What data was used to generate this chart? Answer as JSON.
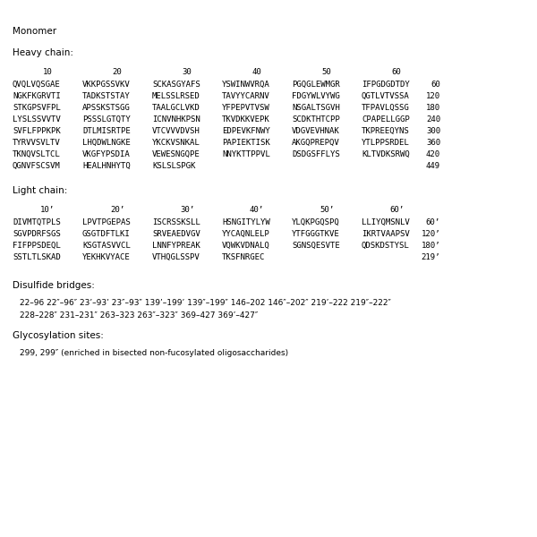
{
  "title": "Monomer",
  "heavy_chain_label": "Heavy chain:",
  "heavy_chain_rows": [
    [
      "QVQLVQSGAE",
      "VKKPGSSVKV",
      "SCKASGYAFS",
      "YSWINWVRQA",
      "PGQGLEWMGR",
      "IFPGDGDTDY",
      "60"
    ],
    [
      "NGKFKGRVTI",
      "TADKSTSTAY",
      "MELSSLRSED",
      "TAVYYCARNV",
      "FDGYWLVYWG",
      "QGTLVTVSSA",
      "120"
    ],
    [
      "STKGPSVFPL",
      "APSSKSTSGG",
      "TAALGCLVKD",
      "YFPEPVTVSW",
      "NSGALTSGVH",
      "TFPAVLQSSG",
      "180"
    ],
    [
      "LYSLSSVVTV",
      "PSSSLGTQTY",
      "ICNVNHKPSN",
      "TKVDKKVEPK",
      "SCDKTHTCPP",
      "CPAPELLGGP",
      "240"
    ],
    [
      "SVFLFPPKPK",
      "DTLMISRTPE",
      "VTCVVVDVSH",
      "EDPEVKFNWY",
      "VDGVEVHNAK",
      "TKPREEQYNS",
      "300"
    ],
    [
      "TYRVVSVLTV",
      "LHQDWLNGKE",
      "YKCKVSNKAL",
      "PAPIEKTISK",
      "AKGQPREPQV",
      "YTLPPSRDEL",
      "360"
    ],
    [
      "TKNQVSLTCL",
      "VKGFYPSDIA",
      "VEWESNGQPE",
      "NNYKTTPPVL",
      "DSDGSFFLYS",
      "KLTVDKSRWQ",
      "420"
    ],
    [
      "QGNVFSCSVM",
      "HEALHNHYTQ",
      "KSLSLSPGK",
      "",
      "",
      "",
      "449"
    ]
  ],
  "light_chain_label": "Light chain:",
  "light_chain_rows": [
    [
      "DIVMTQTPLS",
      "LPVTPGEPAS",
      "ISCRSSKSLL",
      "HSNGITYLYW",
      "YLQKPGQSPQ",
      "LLIYQMSNLV",
      "60’"
    ],
    [
      "SGVPDRFSGS",
      "GSGTDFTLKI",
      "SRVEAEDVGV",
      "YYCAQNLELP",
      "YTFGGGTKVE",
      "IKRTVAAPSV",
      "120’"
    ],
    [
      "FIFPPSDEQL",
      "KSGTASVVCL",
      "LNNFYPREAK",
      "VQWKVDNALQ",
      "SGNSQESVTE",
      "QDSKDSTYSL",
      "180’"
    ],
    [
      "SSTLTLSKAD",
      "YEKHKVYACE",
      "VTHQGLSSPV",
      "TKSFNRGEC",
      "",
      "",
      "219’"
    ]
  ],
  "heavy_ruler": [
    "10",
    "20",
    "30",
    "40",
    "50",
    "60"
  ],
  "light_ruler": [
    "10’",
    "20’",
    "30’",
    "40’",
    "50’",
    "60’"
  ],
  "disulfide_label": "Disulfide bridges:",
  "disulfide_line1": "22–96 22″–96″ 23’–93’ 23″–93″ 139’–199’ 139″–199″ 146–202 146″–202″ 219’–222 219″–222″",
  "disulfide_line2": "228–228″ 231–231″ 263–323 263″–323″ 369–427 369’–427″",
  "glyco_label": "Glycosylation sites:",
  "glyco_text": "299, 299″ (enriched in bisected non-fucosylated oligosaccharides)",
  "bg_color": "#ffffff",
  "text_color": "#000000"
}
